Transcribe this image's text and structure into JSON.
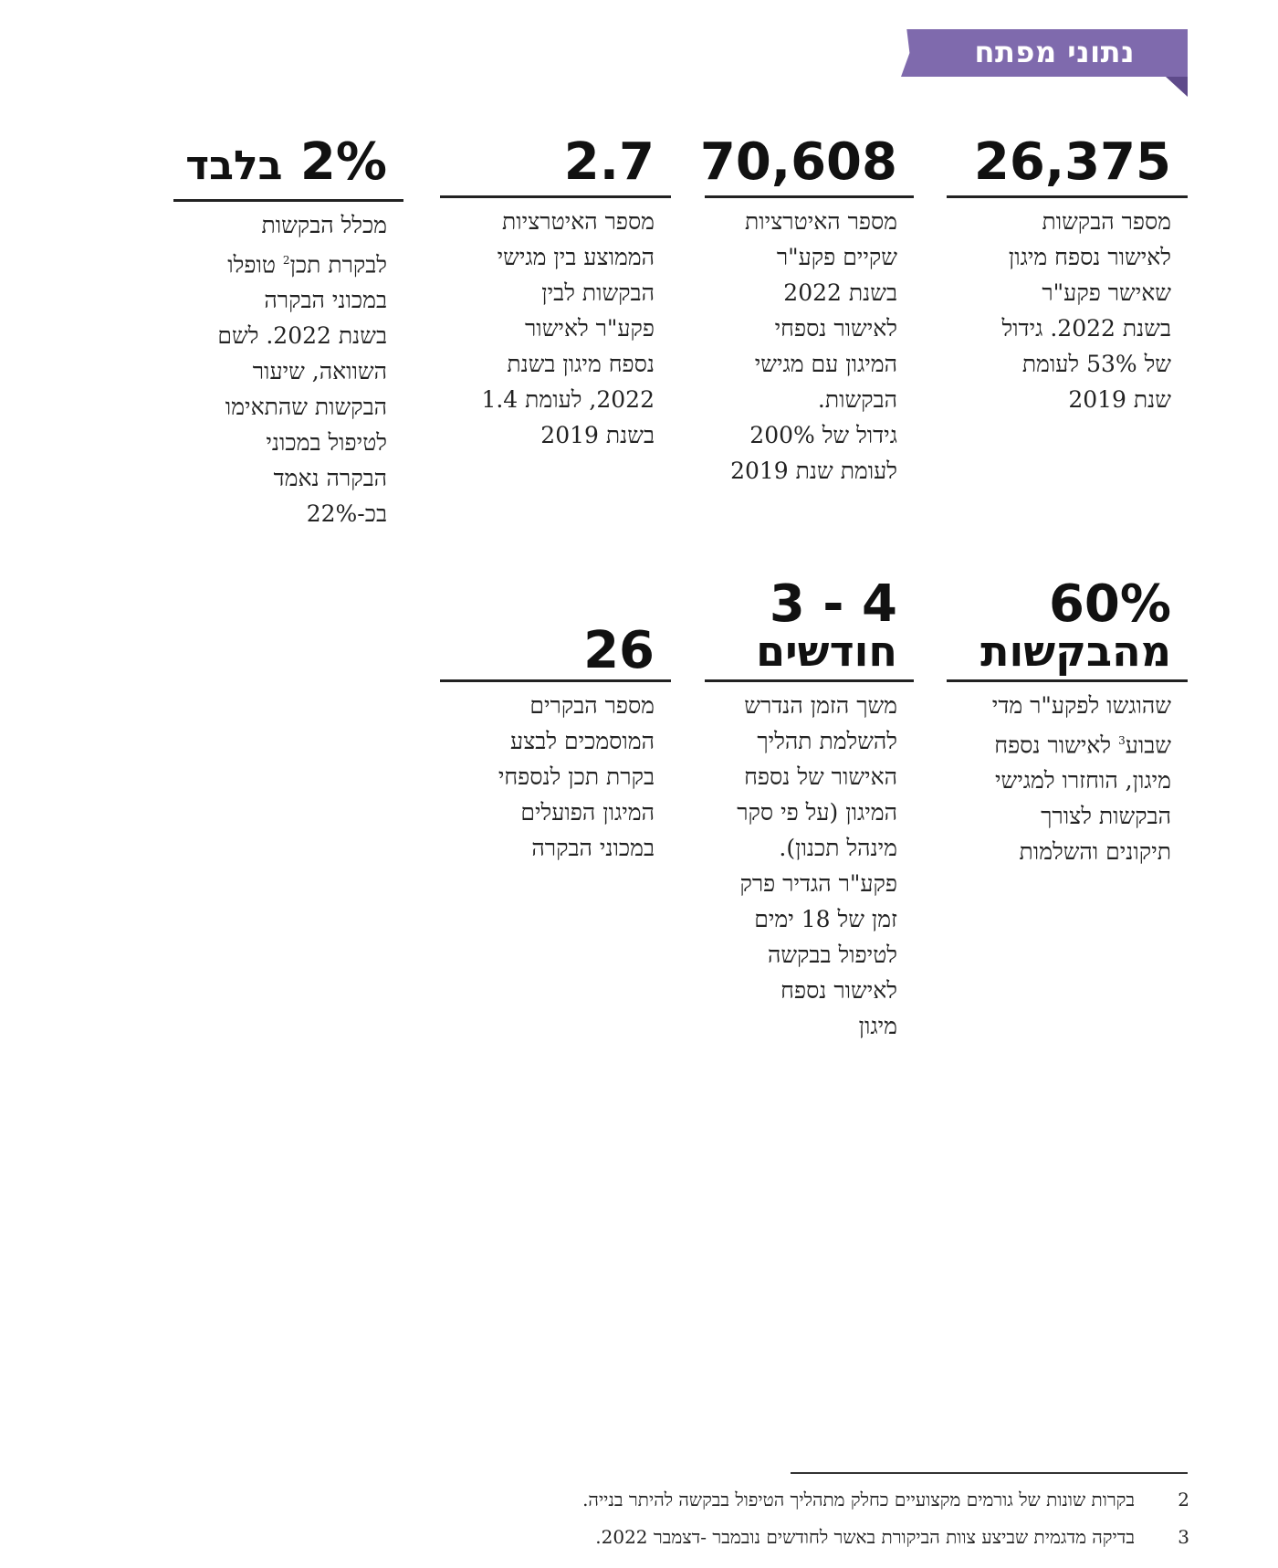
{
  "header": {
    "title": "נתוני מפתח"
  },
  "stats_row1": [
    {
      "value": "26,375",
      "desc": [
        "מספר הבקשות",
        "לאישור נספח מיגון",
        "שאישר פקע\"ר",
        "בשנת 2022. גידול",
        "של 53% לעומת",
        "שנת 2019"
      ]
    },
    {
      "value": "70,608",
      "desc": [
        "מספר האיטרציות",
        "שקיים פקע\"ר",
        "בשנת 2022",
        "לאישור נספחי",
        "המיגון עם מגישי",
        "הבקשות.",
        "גידול של 200%",
        "לעומת שנת 2019"
      ]
    },
    {
      "value": "2.7",
      "desc": [
        "מספר האיטרציות",
        "הממוצע בין מגישי",
        "הבקשות לבין",
        "פקע\"ר לאישור",
        "נספח מיגון בשנת",
        "2022, לעומת 1.4",
        "בשנת 2019"
      ]
    },
    {
      "value_num": "2%",
      "value_word": "בלבד",
      "desc_first": "מכלל הבקשות",
      "desc_second_pre": "לבקרת תכן",
      "desc_second_sup": "2",
      "desc_second_post": " טופלו",
      "desc": [
        "במכוני הבקרה",
        "בשנת 2022. לשם",
        "השוואה, שיעור",
        "הבקשות שהתאימו",
        "לטיפול במכוני",
        "הבקרה נאמד",
        "בכ-22%"
      ]
    }
  ],
  "stats_row2": [
    {
      "value_line1": "60%",
      "value_line2": "מהבקשות",
      "desc_first": "שהוגשו לפקע\"ר מדי",
      "desc_second_pre": "שבוע",
      "desc_second_sup": "3",
      "desc_second_post": " לאישור נספח",
      "desc": [
        "מיגון, הוחזרו למגישי",
        "הבקשות לצורך",
        "תיקונים והשלמות"
      ]
    },
    {
      "value_line1": "3 - 4",
      "value_line2": "חודשים",
      "desc": [
        "משך הזמן הנדרש",
        "להשלמת תהליך",
        "האישור של נספח",
        "המיגון (על פי סקר",
        "מינהל תכנון).",
        "פקע\"ר הגדיר פרק",
        "זמן של 18 ימים",
        "לטיפול בבקשה",
        "לאישור נספח",
        "מיגון"
      ]
    },
    {
      "value": "26",
      "desc": [
        "מספר הבקרים",
        "המוסמכים לבצע",
        "בקרת תכן לנספחי",
        "המיגון הפועלים",
        "במכוני הבקרה"
      ]
    }
  ],
  "footnotes": [
    {
      "num": "2",
      "text": "בקרות שונות של גורמים מקצועיים כחלק מתהליך הטיפול בבקשה להיתר בנייה."
    },
    {
      "num": "3",
      "text": "בדיקה מדגמית שביצע צוות הביקורת באשר לחודשים נובמבר -דצמבר 2022."
    }
  ]
}
